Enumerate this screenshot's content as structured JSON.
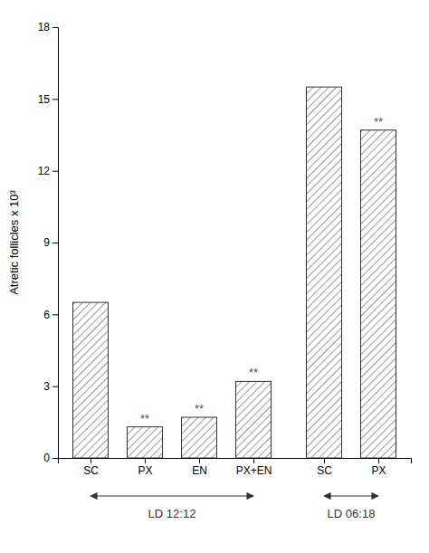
{
  "chart_data": {
    "type": "bar",
    "categories": [
      "SC",
      "PX",
      "EN",
      "PX+EN",
      "SC",
      "PX"
    ],
    "values": [
      6.5,
      1.3,
      1.7,
      3.2,
      15.5,
      13.7
    ],
    "significance": [
      null,
      "**",
      "**",
      "**",
      null,
      "**"
    ],
    "group": [
      "LD 12:12",
      "LD 12:12",
      "LD 12:12",
      "LD 12:12",
      "LD 06:18",
      "LD 06:18"
    ],
    "ylabel": "Atretic follicles x 10³",
    "ylim": [
      0,
      18
    ],
    "yticks": [
      0,
      3,
      6,
      9,
      12,
      15,
      18
    ],
    "color": "white",
    "grid": false
  }
}
